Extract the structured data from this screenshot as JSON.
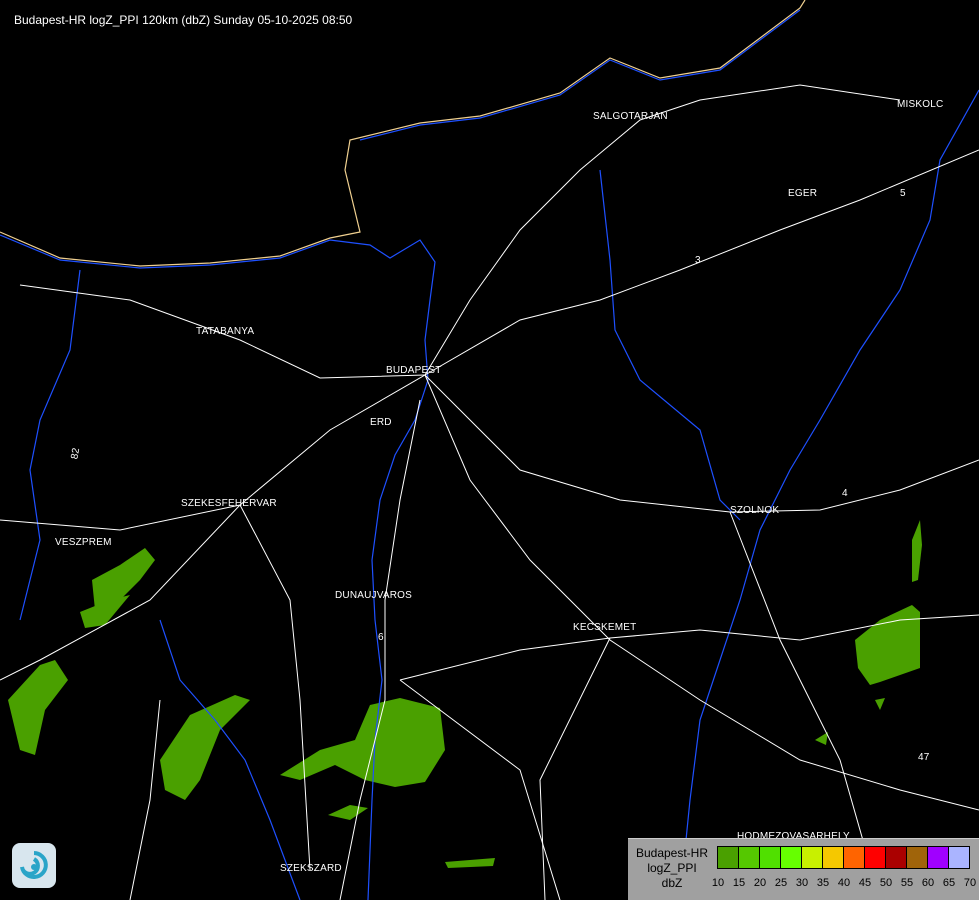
{
  "title": "Budapest-HR logZ_PPI 120km (dbZ) Sunday 05-10-2025 08:50",
  "cities": [
    {
      "name": "SALGOTARJAN"
    },
    {
      "name": "MISKOLC"
    },
    {
      "name": "EGER"
    },
    {
      "name": "TATABANYA"
    },
    {
      "name": "BUDAPEST"
    },
    {
      "name": "ERD"
    },
    {
      "name": "SZEKESFEHERVAR"
    },
    {
      "name": "VESZPREM"
    },
    {
      "name": "DUNAUJVAROS"
    },
    {
      "name": "KECSKEMET"
    },
    {
      "name": "SZOLNOK"
    },
    {
      "name": "HODMEZOVASARHELY"
    },
    {
      "name": "SZEKSZARD"
    }
  ],
  "road_numbers": [
    "3",
    "5",
    "4",
    "47",
    "82",
    "6"
  ],
  "legend": {
    "line1": "Budapest-HR",
    "line2": "logZ_PPI",
    "unit": "dbZ",
    "ticks": [
      "10",
      "15",
      "20",
      "25",
      "30",
      "35",
      "40",
      "45",
      "50",
      "55",
      "60",
      "65",
      "70"
    ],
    "colors": [
      "#4aa000",
      "#55c800",
      "#50e000",
      "#66ff00",
      "#c8f000",
      "#f5c800",
      "#ff6400",
      "#ff0000",
      "#aa0000",
      "#a0640a",
      "#a000ff",
      "#aab4ff"
    ]
  },
  "colors": {
    "background": "#000000",
    "rivers": "#1e50ff",
    "roads": "#ffffff",
    "border": "#f0d090",
    "precip": "#4aa000"
  },
  "logo_icon": "swirl-logo-icon"
}
